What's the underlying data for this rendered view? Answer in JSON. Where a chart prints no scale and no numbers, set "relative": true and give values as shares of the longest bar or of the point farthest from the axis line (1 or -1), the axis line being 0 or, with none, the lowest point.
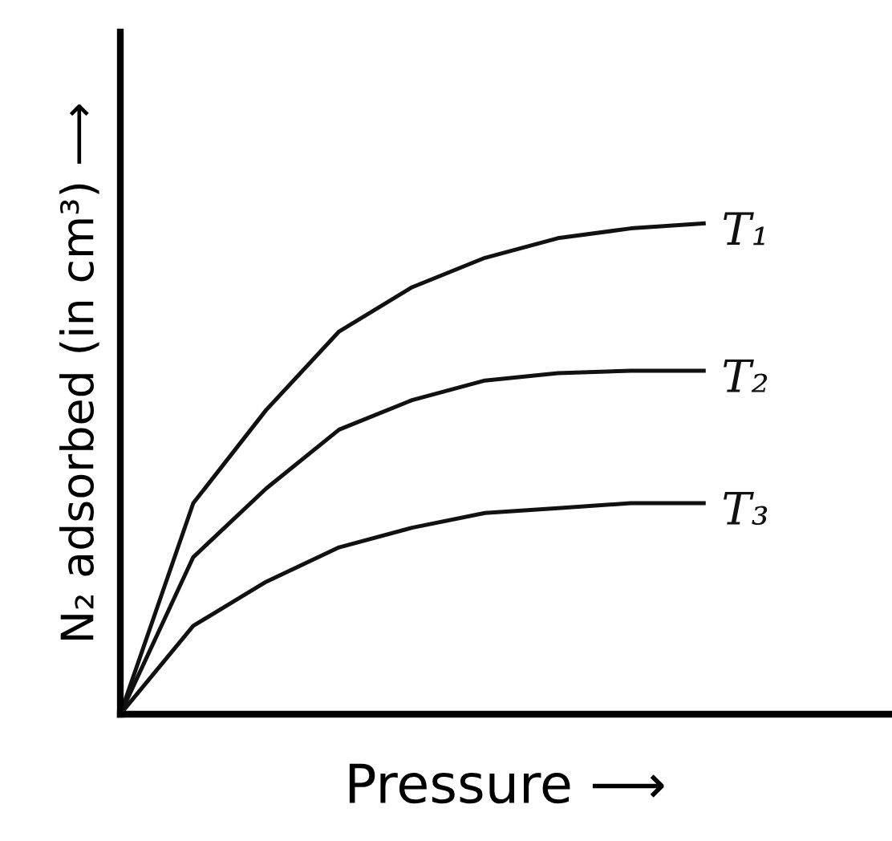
{
  "chart_data": {
    "type": "line",
    "relative": true,
    "xlabel": "Pressure ⟶",
    "ylabel": "N₂ adsorbed (in cm³) ⟶",
    "categories": [
      null,
      null,
      null,
      null,
      null,
      null,
      null,
      null,
      null
    ],
    "marker": "none",
    "line_style": "solid",
    "grid": false,
    "legend": false,
    "series": [
      {
        "name": "T₁",
        "color": "#111111",
        "values": [
          0,
          0.43,
          0.62,
          0.78,
          0.87,
          0.93,
          0.97,
          0.99,
          1
        ]
      },
      {
        "name": "T₂",
        "color": "#111111",
        "values": [
          0,
          0.32,
          0.46,
          0.58,
          0.64,
          0.68,
          0.695,
          0.7,
          0.7
        ]
      },
      {
        "name": "T₃",
        "color": "#111111",
        "values": [
          0,
          0.18,
          0.27,
          0.34,
          0.38,
          0.41,
          0.42,
          0.43,
          0.43
        ]
      }
    ]
  }
}
